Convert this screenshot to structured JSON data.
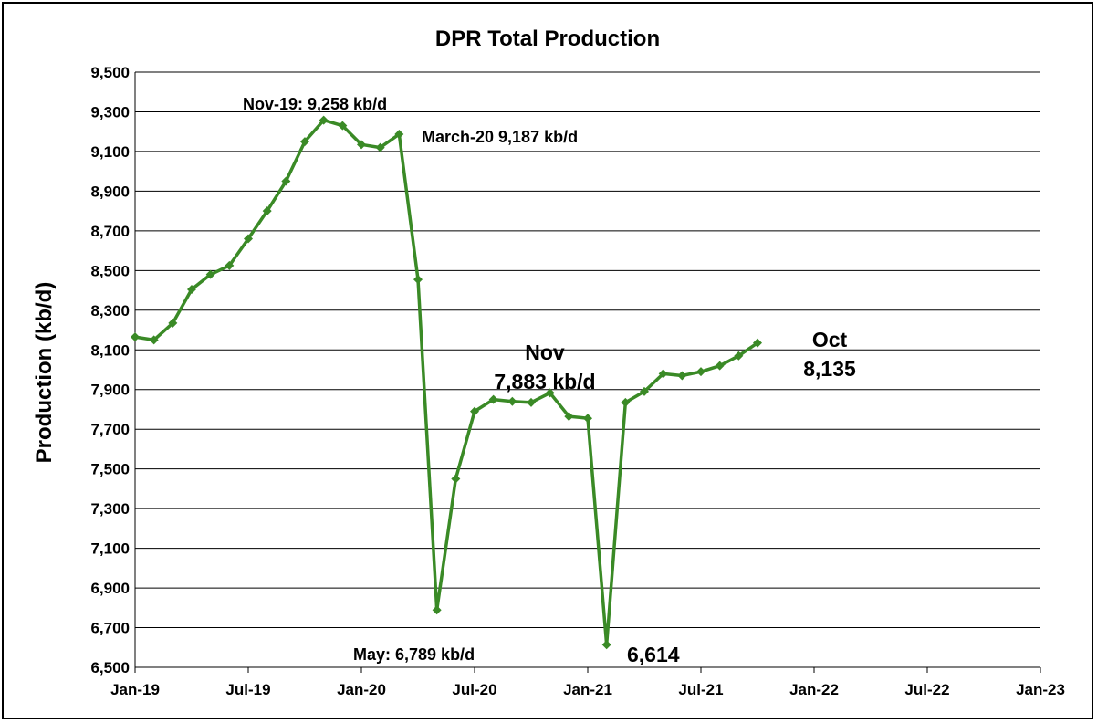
{
  "chart_data": {
    "type": "line",
    "title": "DPR Total  Production",
    "ylabel": "Production (kb/d)",
    "xlabel": "",
    "ylim": [
      6500,
      9500
    ],
    "ytick_step": 200,
    "yticks": [
      "9,500",
      "9,300",
      "9,100",
      "8,900",
      "8,700",
      "8,500",
      "8,300",
      "8,100",
      "7,900",
      "7,700",
      "7,500",
      "7,300",
      "7,100",
      "6,900",
      "6,700",
      "6,500"
    ],
    "x_range": [
      "2019-01",
      "2023-01"
    ],
    "xticks": [
      "Jan-19",
      "Jul-19",
      "Jan-20",
      "Jul-20",
      "Jan-21",
      "Jul-21",
      "Jan-22",
      "Jul-22",
      "Jan-23"
    ],
    "grid": true,
    "legend": "none",
    "series": [
      {
        "color": "#3a8a26",
        "marker": "diamond",
        "x": [
          "2019-01",
          "2019-02",
          "2019-03",
          "2019-04",
          "2019-05",
          "2019-06",
          "2019-07",
          "2019-08",
          "2019-09",
          "2019-10",
          "2019-11",
          "2019-12",
          "2020-01",
          "2020-02",
          "2020-03",
          "2020-04",
          "2020-05",
          "2020-06",
          "2020-07",
          "2020-08",
          "2020-09",
          "2020-10",
          "2020-11",
          "2020-12",
          "2021-01",
          "2021-02",
          "2021-03",
          "2021-04",
          "2021-05",
          "2021-06",
          "2021-07",
          "2021-08",
          "2021-09",
          "2021-10"
        ],
        "values": [
          8165,
          8150,
          8235,
          8405,
          8480,
          8525,
          8660,
          8800,
          8950,
          9150,
          9258,
          9230,
          9135,
          9120,
          9187,
          8455,
          6789,
          7450,
          7790,
          7850,
          7840,
          7835,
          7883,
          7765,
          7755,
          6614,
          7835,
          7890,
          7980,
          7970,
          7990,
          8020,
          8070,
          8135
        ]
      }
    ],
    "annotations": [
      {
        "lines": [
          "Nov-19: 9,258 kb/d"
        ],
        "size": "small",
        "anchor_x": "2019-11"
      },
      {
        "lines": [
          "March-20 9,187 kb/d"
        ],
        "size": "small",
        "anchor_x": "2020-03"
      },
      {
        "lines": [
          "Nov",
          "7,883 kb/d"
        ],
        "size": "large",
        "anchor_x": "2020-11"
      },
      {
        "lines": [
          "Oct",
          "8,135"
        ],
        "size": "large",
        "anchor_x": "2021-10"
      },
      {
        "lines": [
          "May: 6,789 kb/d"
        ],
        "size": "small",
        "anchor_x": "2020-05"
      },
      {
        "lines": [
          "6,614"
        ],
        "size": "large",
        "anchor_x": "2021-02"
      }
    ]
  }
}
